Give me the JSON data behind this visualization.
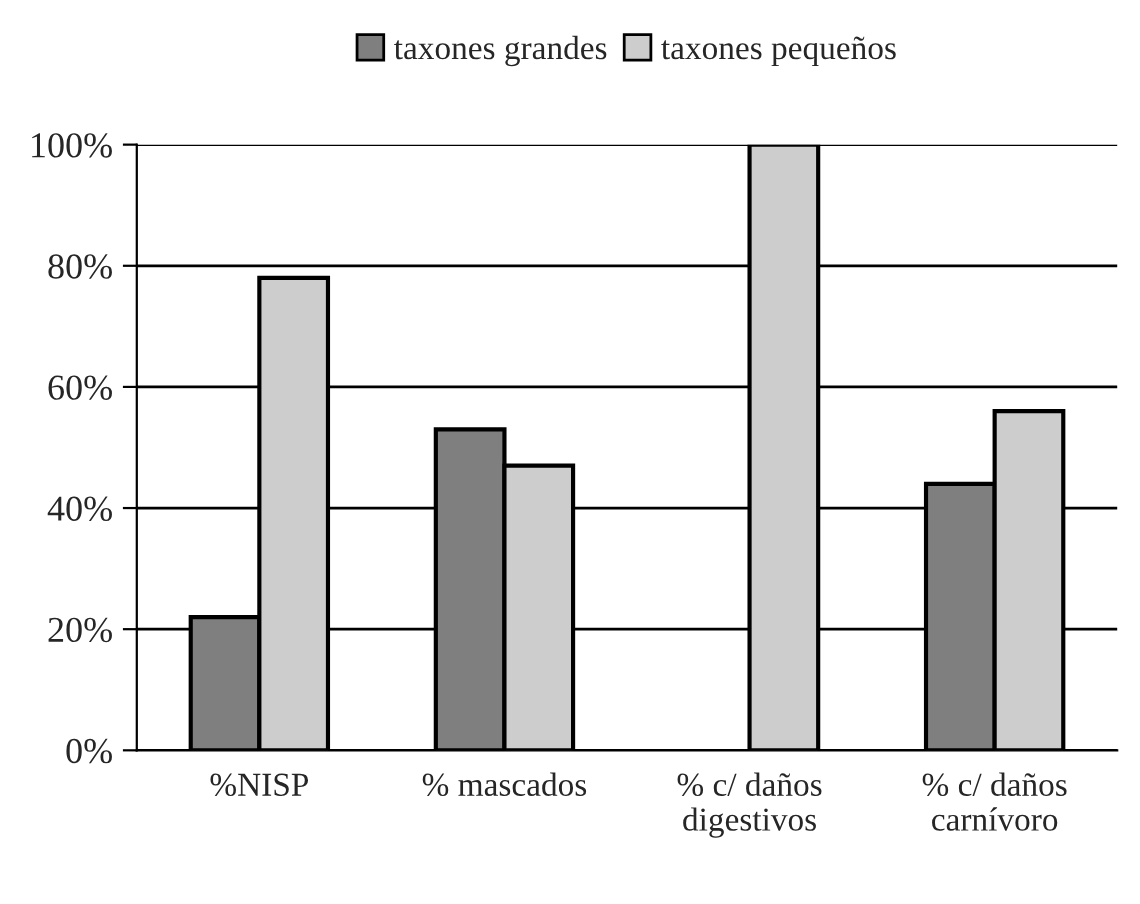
{
  "chart_data": {
    "type": "bar",
    "categories": [
      "%NISP",
      "% mascados",
      "% c/ daños\ndigestivos",
      "% c/ daños\ncarnívoro"
    ],
    "series": [
      {
        "name": "taxones grandes",
        "color": "#7f7f7f",
        "values": [
          22,
          53,
          0,
          44
        ]
      },
      {
        "name": "taxones pequeños",
        "color": "#cdcdcd",
        "values": [
          78,
          47,
          100,
          56
        ]
      }
    ],
    "ylim": [
      0,
      100
    ],
    "yticks": [
      {
        "value": 0,
        "label": "0%"
      },
      {
        "value": 20,
        "label": "20%"
      },
      {
        "value": 40,
        "label": "40%"
      },
      {
        "value": 60,
        "label": "60%"
      },
      {
        "value": 80,
        "label": "80%"
      },
      {
        "value": 100,
        "label": "100%"
      }
    ],
    "grid": "y",
    "legend": "top"
  }
}
